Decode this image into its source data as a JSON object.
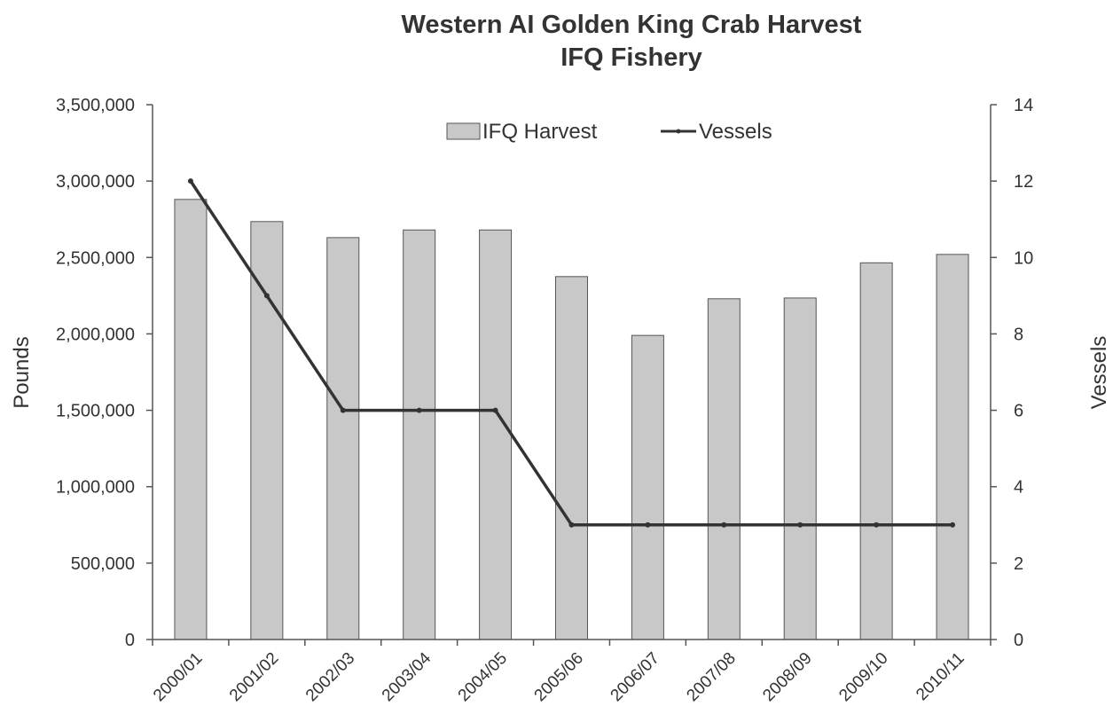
{
  "chart_data": {
    "type": "bar",
    "title": "Western AI Golden King Crab Harvest",
    "subtitle": "IFQ Fishery",
    "categories": [
      "2000/01",
      "2001/02",
      "2002/03",
      "2003/04",
      "2004/05",
      "2005/06",
      "2006/07",
      "2007/08",
      "2008/09",
      "2009/10",
      "2010/11"
    ],
    "series": [
      {
        "name": "IFQ Harvest",
        "type": "bar",
        "axis": "left",
        "values": [
          2880000,
          2735000,
          2630000,
          2680000,
          2680000,
          2375000,
          1990000,
          2230000,
          2235000,
          2465000,
          2520000
        ]
      },
      {
        "name": "Vessels",
        "type": "line",
        "axis": "right",
        "values": [
          12,
          9,
          6,
          6,
          6,
          3,
          3,
          3,
          3,
          3,
          3
        ]
      }
    ],
    "ylabel": "Pounds",
    "y2label": "Vessels",
    "ylim": [
      0,
      3500000
    ],
    "y2lim": [
      0,
      14
    ],
    "y_ticks": [
      "0",
      "500,000",
      "1,000,000",
      "1,500,000",
      "2,000,000",
      "2,500,000",
      "3,000,000",
      "3,500,000"
    ],
    "y2_ticks": [
      "0",
      "2",
      "4",
      "6",
      "8",
      "10",
      "12",
      "14"
    ],
    "legend_position": "top-center",
    "grid": false,
    "colors": {
      "bar_fill": "#c8c8c8",
      "bar_stroke": "#555555",
      "line": "#333333",
      "axis": "#555555"
    }
  }
}
